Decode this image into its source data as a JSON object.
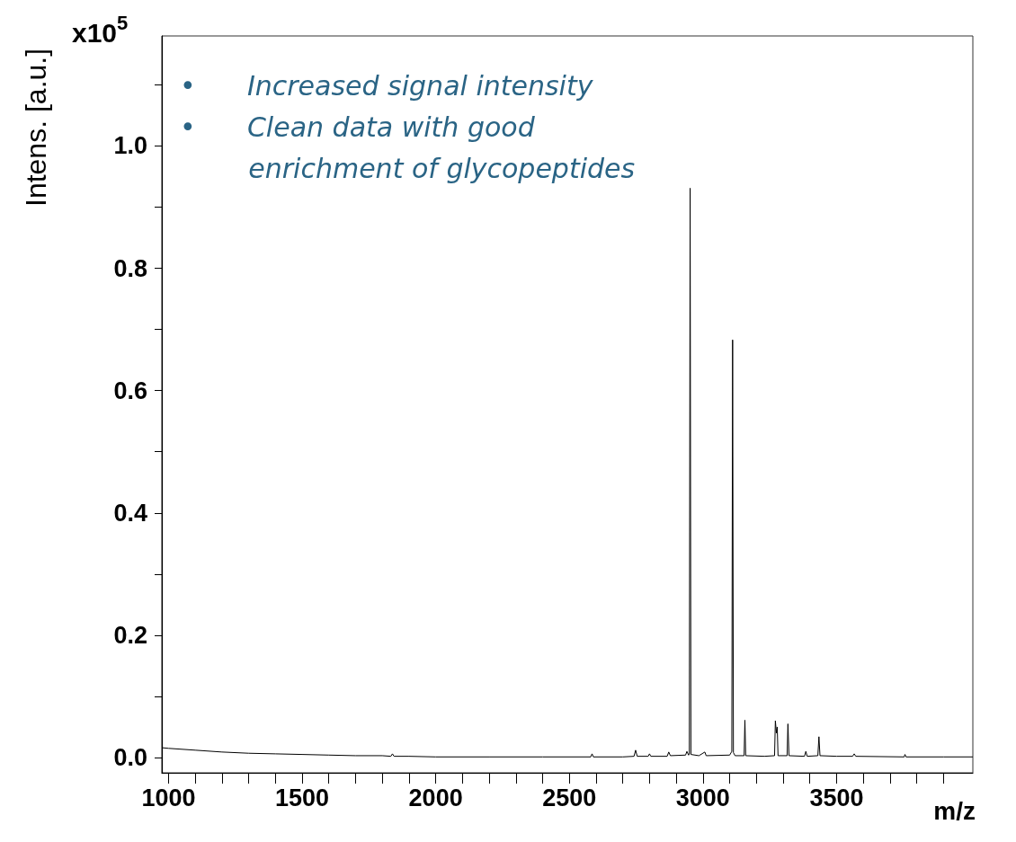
{
  "chart_data": {
    "type": "line",
    "xlabel": "m/z",
    "ylabel": "Intens. [a.u.]",
    "annotations": [
      "x10$^{5}$",
      "•      Increased signal intensity",
      "•      Clean data with good\n        enrichment of glycopeptides"
    ],
    "x": [
      976,
      1000,
      1100,
      1200,
      1300,
      1400,
      1500,
      1600,
      1700,
      1800,
      1832,
      1838,
      1844,
      1900,
      2000,
      2200,
      2400,
      2580,
      2585,
      2590,
      2700,
      2742,
      2748,
      2754,
      2795,
      2800,
      2805,
      2866,
      2872,
      2878,
      2935,
      2940,
      2946,
      2949,
      2952,
      2955,
      2985,
      3007,
      3012,
      3100,
      3108,
      3111,
      3114,
      3120,
      3154,
      3157,
      3160,
      3230,
      3268,
      3271,
      3275,
      3278,
      3281,
      3315,
      3318,
      3322,
      3380,
      3385,
      3390,
      3430,
      3434,
      3438,
      3500,
      3560,
      3566,
      3572,
      3753,
      3756,
      3760,
      3900,
      4010
    ],
    "series": [
      {
        "color": "#000000",
        "values": [
          0.016,
          0.015,
          0.012,
          0.009,
          0.007,
          0.006,
          0.005,
          0.004,
          0.003,
          0.003,
          0.002,
          0.006,
          0.002,
          0.002,
          0.001,
          0.001,
          0.001,
          0.001,
          0.006,
          0.001,
          0.001,
          0.002,
          0.012,
          0.002,
          0.002,
          0.006,
          0.002,
          0.002,
          0.009,
          0.003,
          0.004,
          0.01,
          0.004,
          0.005,
          0.931,
          0.005,
          0.003,
          0.009,
          0.003,
          0.004,
          0.01,
          0.683,
          0.008,
          0.003,
          0.003,
          0.061,
          0.003,
          0.002,
          0.003,
          0.06,
          0.04,
          0.05,
          0.003,
          0.003,
          0.055,
          0.003,
          0.002,
          0.01,
          0.002,
          0.003,
          0.034,
          0.003,
          0.002,
          0.002,
          0.006,
          0.002,
          0.001,
          0.005,
          0.001,
          0.001,
          0.001
        ]
      }
    ],
    "xlim": [
      975,
      4010
    ],
    "xticks": [
      1000,
      {
        "value": 1100,
        "label": null
      },
      {
        "value": 1200,
        "label": null
      },
      {
        "value": 1300,
        "label": null
      },
      {
        "value": 1400,
        "label": null
      },
      1500,
      {
        "value": 1600,
        "label": null
      },
      {
        "value": 1700,
        "label": null
      },
      {
        "value": 1800,
        "label": null
      },
      {
        "value": 1900,
        "label": null
      },
      2000,
      {
        "value": 2100,
        "label": null
      },
      {
        "value": 2200,
        "label": null
      },
      {
        "value": 2300,
        "label": null
      },
      {
        "value": 2400,
        "label": null
      },
      2500,
      {
        "value": 2600,
        "label": null
      },
      {
        "value": 2700,
        "label": null
      },
      {
        "value": 2800,
        "label": null
      },
      {
        "value": 2900,
        "label": null
      },
      3000,
      {
        "value": 3100,
        "label": null
      },
      {
        "value": 3200,
        "label": null
      },
      {
        "value": 3300,
        "label": null
      },
      {
        "value": 3400,
        "label": null
      },
      3500,
      {
        "value": 3600,
        "label": null
      },
      {
        "value": 3700,
        "label": null
      },
      {
        "value": 3800,
        "label": null
      },
      {
        "value": 3900,
        "label": null
      }
    ],
    "ylim": [
      -0.025,
      1.18
    ],
    "yticks": [
      {
        "value": 0,
        "label": "0.0"
      },
      {
        "value": 0.1,
        "label": null
      },
      {
        "value": 0.2,
        "label": "0.2"
      },
      {
        "value": 0.3,
        "label": null
      },
      {
        "value": 0.4,
        "label": "0.4"
      },
      {
        "value": 0.5,
        "label": null
      },
      {
        "value": 0.6,
        "label": "0.6"
      },
      {
        "value": 0.7,
        "label": null
      },
      {
        "value": 0.8,
        "label": "0.8"
      },
      {
        "value": 0.9,
        "label": null
      },
      {
        "value": 1,
        "label": "1.0"
      },
      {
        "value": 1.1,
        "label": null
      }
    ],
    "grid": false,
    "marker": "none",
    "line_style": "solid"
  }
}
